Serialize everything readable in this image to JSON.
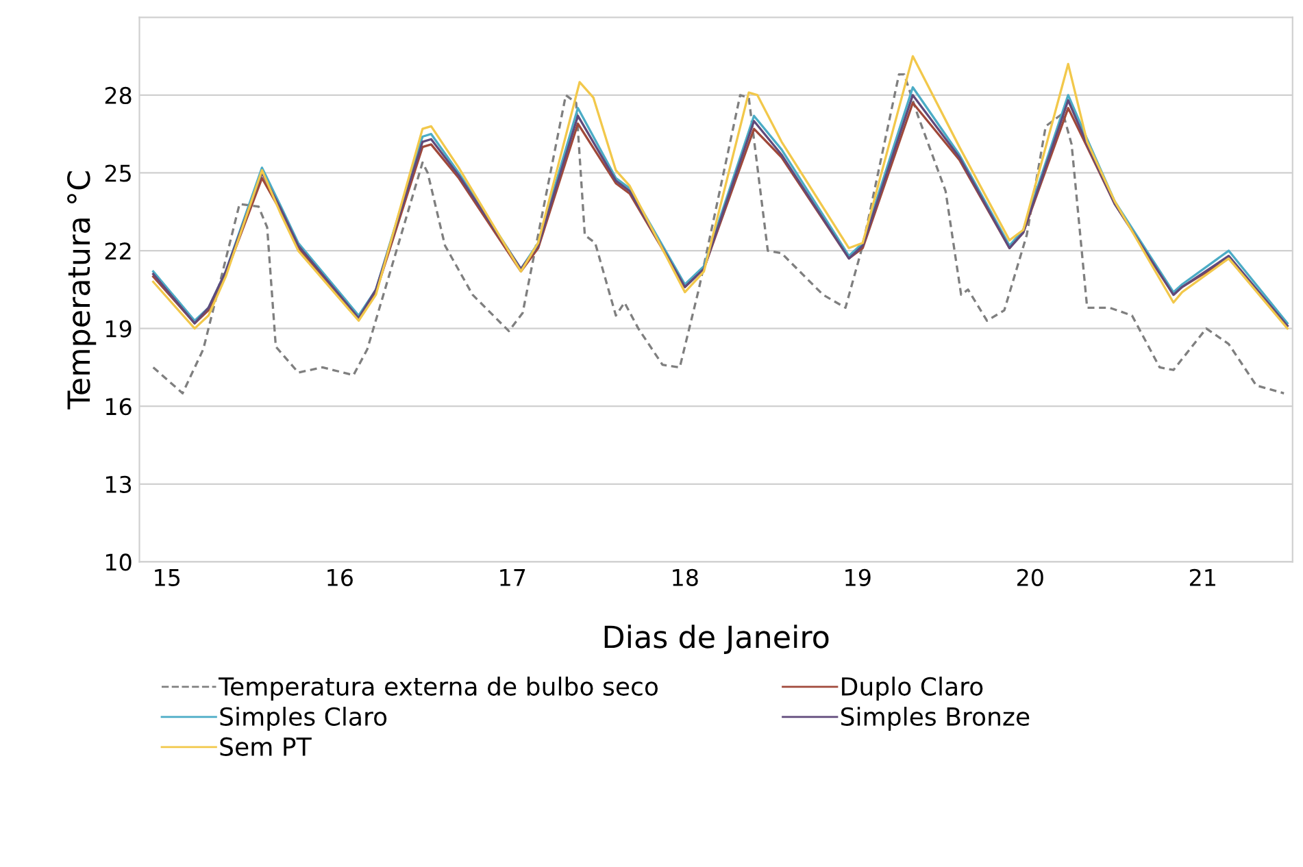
{
  "chart_data": {
    "type": "line",
    "xlabel": "Dias de Janeiro",
    "ylabel": "Temperatura °C",
    "xlim": [
      14.84,
      21.52
    ],
    "xticks": [
      15,
      16,
      17,
      18,
      19,
      20,
      21
    ],
    "ylim": [
      10,
      31
    ],
    "yticks": [
      10,
      13,
      16,
      19,
      22,
      25,
      28
    ],
    "grid": "y",
    "legend": "bottom",
    "marker": "none",
    "series": [
      {
        "name": "Temperatura externa de bulbo seco",
        "color": "#7f7f7f",
        "line_style": "dashed",
        "x": [
          14.92,
          15.09,
          15.21,
          15.42,
          15.53,
          15.58,
          15.63,
          15.76,
          15.9,
          16.08,
          16.16,
          16.48,
          16.51,
          16.61,
          16.77,
          16.98,
          17.06,
          17.31,
          17.37,
          17.42,
          17.48,
          17.6,
          17.65,
          17.73,
          17.87,
          17.97,
          18.08,
          18.32,
          18.37,
          18.48,
          18.56,
          18.8,
          18.93,
          19.03,
          19.24,
          19.27,
          19.35,
          19.51,
          19.6,
          19.64,
          19.75,
          19.85,
          19.98,
          20.09,
          20.19,
          20.24,
          20.33,
          20.46,
          20.59,
          20.75,
          20.83,
          21.02,
          21.15,
          21.31,
          21.47
        ],
        "values": [
          17.5,
          16.5,
          18.2,
          23.8,
          23.7,
          22.9,
          18.3,
          17.3,
          17.5,
          17.2,
          18.2,
          25.4,
          25.0,
          22.2,
          20.3,
          18.9,
          19.6,
          28.0,
          27.7,
          22.6,
          22.3,
          19.5,
          20.0,
          19.0,
          17.6,
          17.5,
          20.5,
          28.0,
          27.9,
          22.0,
          21.9,
          20.3,
          19.8,
          22.2,
          28.8,
          28.8,
          27.2,
          24.3,
          20.3,
          20.5,
          19.3,
          19.7,
          22.6,
          26.8,
          27.3,
          26.1,
          19.8,
          19.8,
          19.5,
          17.5,
          17.4,
          19.0,
          18.4,
          16.8,
          16.5
        ]
      },
      {
        "name": "Duplo Claro",
        "color": "#a0493a",
        "line_style": "solid",
        "x": [
          14.92,
          15.16,
          15.24,
          15.34,
          15.55,
          15.66,
          15.76,
          16.11,
          16.21,
          16.48,
          16.53,
          16.69,
          17.05,
          17.15,
          17.38,
          17.6,
          17.68,
          18.0,
          18.11,
          18.4,
          18.56,
          18.95,
          19.03,
          19.32,
          19.59,
          19.88,
          19.96,
          20.22,
          20.33,
          20.49,
          20.83,
          20.88,
          21.15,
          21.49
        ],
        "values": [
          21.0,
          19.2,
          19.7,
          21.1,
          24.8,
          23.5,
          22.1,
          19.4,
          20.4,
          26.0,
          26.1,
          24.8,
          21.2,
          22.1,
          26.9,
          24.6,
          24.2,
          20.6,
          21.3,
          26.7,
          25.6,
          21.7,
          22.1,
          27.7,
          25.5,
          22.1,
          22.7,
          27.5,
          26.0,
          23.8,
          20.3,
          20.6,
          21.7,
          19.1
        ]
      },
      {
        "name": "Simples Claro",
        "color": "#4bacc6",
        "line_style": "solid",
        "x": [
          14.92,
          15.16,
          15.24,
          15.34,
          15.55,
          15.66,
          15.76,
          16.11,
          16.21,
          16.48,
          16.53,
          16.69,
          17.05,
          17.15,
          17.38,
          17.6,
          17.68,
          18.0,
          18.11,
          18.4,
          18.56,
          18.95,
          19.03,
          19.32,
          19.59,
          19.88,
          19.96,
          20.22,
          20.33,
          20.49,
          20.83,
          20.88,
          21.15,
          21.49
        ],
        "values": [
          21.2,
          19.3,
          19.8,
          21.2,
          25.2,
          23.7,
          22.3,
          19.5,
          20.5,
          26.4,
          26.5,
          25.0,
          21.3,
          22.3,
          27.5,
          24.8,
          24.4,
          20.7,
          21.4,
          27.2,
          25.9,
          21.8,
          22.3,
          28.3,
          25.7,
          22.2,
          22.8,
          28.0,
          26.3,
          23.9,
          20.4,
          20.7,
          22.0,
          19.2
        ]
      },
      {
        "name": "Simples Bronze",
        "color": "#604a7b",
        "line_style": "solid",
        "x": [
          14.92,
          15.16,
          15.24,
          15.34,
          15.55,
          15.66,
          15.76,
          16.11,
          16.21,
          16.48,
          16.53,
          16.69,
          17.05,
          17.15,
          17.38,
          17.6,
          17.68,
          18.0,
          18.11,
          18.4,
          18.56,
          18.95,
          19.03,
          19.32,
          19.59,
          19.88,
          19.96,
          20.22,
          20.33,
          20.49,
          20.83,
          20.88,
          21.15,
          21.49
        ],
        "values": [
          21.1,
          19.2,
          19.8,
          21.2,
          25.0,
          23.6,
          22.2,
          19.4,
          20.5,
          26.2,
          26.3,
          24.9,
          21.3,
          22.2,
          27.2,
          24.7,
          24.3,
          20.6,
          21.3,
          27.0,
          25.7,
          21.7,
          22.2,
          28.0,
          25.6,
          22.1,
          22.7,
          27.8,
          26.1,
          23.8,
          20.3,
          20.6,
          21.8,
          19.1
        ]
      },
      {
        "name": "Sem PT",
        "color": "#f2c84b",
        "line_style": "solid",
        "x": [
          14.92,
          15.16,
          15.24,
          15.34,
          15.55,
          15.66,
          15.76,
          16.11,
          16.21,
          16.48,
          16.53,
          16.69,
          17.05,
          17.15,
          17.39,
          17.47,
          17.6,
          17.68,
          18.0,
          18.11,
          18.37,
          18.42,
          18.56,
          18.95,
          19.03,
          19.32,
          19.59,
          19.88,
          19.96,
          20.22,
          20.33,
          20.49,
          20.83,
          20.88,
          21.15,
          21.49
        ],
        "values": [
          20.8,
          19.0,
          19.5,
          21.0,
          25.1,
          23.4,
          22.0,
          19.3,
          20.3,
          26.7,
          26.8,
          25.2,
          21.2,
          22.3,
          28.5,
          27.9,
          25.1,
          24.5,
          20.4,
          21.2,
          28.1,
          28.0,
          26.2,
          22.1,
          22.3,
          29.5,
          26.0,
          22.4,
          22.8,
          29.2,
          26.2,
          23.9,
          20.0,
          20.4,
          21.7,
          19.0
        ]
      }
    ]
  }
}
